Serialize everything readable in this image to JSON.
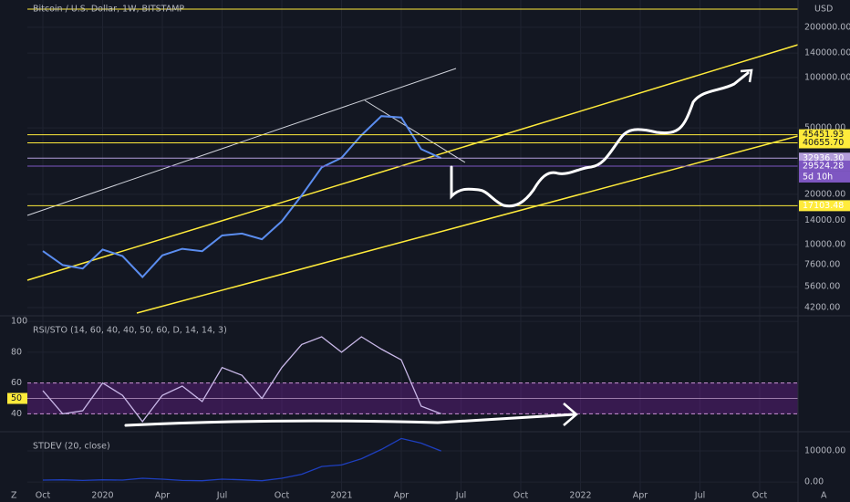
{
  "chart_data": [
    {
      "type": "line",
      "title": "Bitcoin / U.S. Dollar, 1W, BITSTAMP",
      "log_scale": true,
      "grid": true,
      "color": "#5b8def",
      "categories": [
        "Oct",
        null,
        null,
        "2020",
        null,
        null,
        "Apr",
        null,
        null,
        "Jul",
        null,
        null,
        "Oct",
        null,
        null,
        "2021",
        null,
        null,
        "Apr",
        null,
        null,
        "Jul",
        null,
        null,
        "Oct",
        null,
        null,
        "2022",
        null,
        null,
        "Apr",
        null,
        null,
        "Jul",
        null,
        null,
        "Oct"
      ],
      "values": [
        9150,
        7550,
        7200,
        9350,
        8550,
        6400,
        8630,
        9450,
        9140,
        11350,
        11650,
        10780,
        13800,
        19700,
        29000,
        33100,
        45200,
        58800,
        57700,
        37300,
        32936,
        null,
        null,
        null,
        null,
        null,
        null,
        null,
        null,
        null,
        null,
        null,
        null,
        null,
        null,
        null,
        null
      ],
      "ylim": [
        3800,
        291000
      ],
      "yticks": [
        {
          "value": 4200,
          "label": "4200.00"
        },
        {
          "value": 5600,
          "label": "5600.00"
        },
        {
          "value": 7600,
          "label": "7600.00"
        },
        {
          "value": 10000,
          "label": "10000.00"
        },
        {
          "value": 14000,
          "label": "14000.00"
        },
        {
          "value": 20000,
          "label": "20000.00"
        },
        {
          "value": 50000,
          "label": "50000.00"
        },
        {
          "value": 100000,
          "label": "100000.00"
        },
        {
          "value": 140000,
          "label": "140000.00"
        },
        {
          "value": 200000,
          "label": "200000.00"
        }
      ],
      "levels": [
        {
          "value": 45451.93,
          "label": "45451.93",
          "color": "#ffeb3b"
        },
        {
          "value": 40655.7,
          "label": "40655.70",
          "color": "#ffeb3b"
        },
        {
          "value": 32936.3,
          "label": "32936.30",
          "color": "#b39ddb"
        },
        {
          "value": 29524.28,
          "label": "29524.28",
          "color": "#7e57c2"
        },
        {
          "value": 17103.48,
          "label": "17103.48",
          "color": "#ffeb3b"
        }
      ],
      "countdown": "5d 10h",
      "currency": "USD"
    },
    {
      "type": "line",
      "title": "RSI/STO (14, 60, 40, 40, 50, 60, D, 14, 14, 3)",
      "grid": true,
      "color": "#c9b8e8",
      "values": [
        55,
        40,
        42,
        60,
        52,
        35,
        52,
        58,
        48,
        70,
        65,
        50,
        70,
        85,
        90,
        80,
        90,
        82,
        75,
        45,
        40,
        null,
        null,
        null,
        null,
        null,
        null,
        null,
        null,
        null,
        null,
        null,
        null,
        null,
        null,
        null,
        null
      ],
      "ylim": [
        29,
        103
      ],
      "yticks": [
        40,
        60,
        80,
        100
      ],
      "band": [
        40,
        60
      ],
      "midline": 50
    },
    {
      "type": "line",
      "title": "STDEV (20, close)",
      "grid": true,
      "color": "#1e3fbf",
      "values": [
        600,
        700,
        500,
        700,
        600,
        1200,
        900,
        500,
        400,
        900,
        700,
        400,
        1200,
        2500,
        5000,
        5500,
        7500,
        10500,
        14000,
        12500,
        10000,
        null,
        null,
        null,
        null,
        null,
        null,
        null,
        null,
        null,
        null,
        null,
        null,
        null,
        null,
        null,
        null
      ],
      "ylim": [
        -3500,
        15600
      ],
      "yticks": [
        {
          "value": 0,
          "label": "0.00"
        },
        {
          "value": 10000,
          "label": "10000.00"
        }
      ]
    }
  ],
  "ui": {
    "left_icon": "Z",
    "right_icon": "A"
  }
}
